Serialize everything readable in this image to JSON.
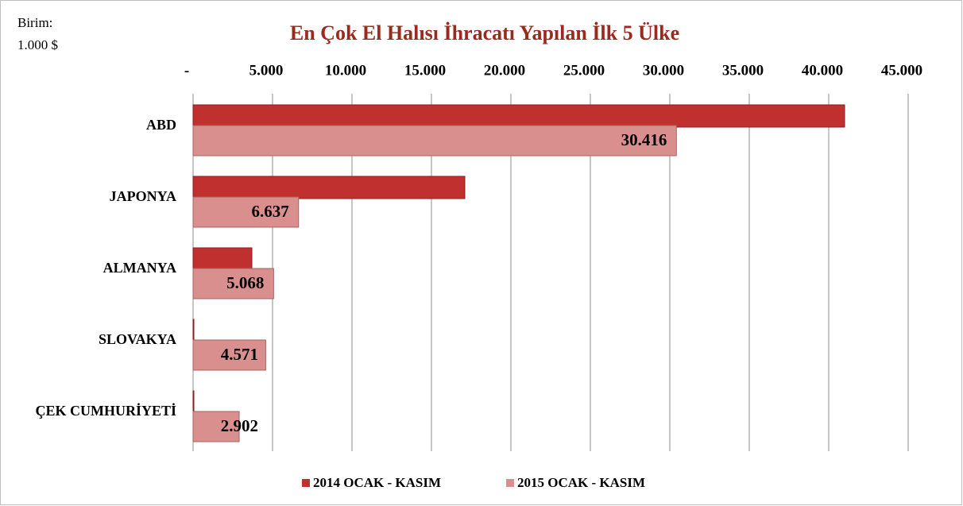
{
  "chart_data": {
    "type": "hbar",
    "title": "En Çok El Halısı İhracatı Yapılan İlk 5 Ülke",
    "unit": [
      "Birim:",
      "1.000 $"
    ],
    "categories": [
      "ABD",
      "JAPONYA",
      "ALMANYA",
      "SLOVAKYA",
      "ÇEK CUMHURİYETİ"
    ],
    "series": [
      {
        "name": "2014 OCAK - KASIM",
        "color": "#c0302e",
        "values": [
          41000,
          17100,
          3700,
          50,
          50
        ]
      },
      {
        "name": "2015 OCAK - KASIM",
        "color": "#d98f8e",
        "values": [
          30416,
          6637,
          5068,
          4571,
          2902
        ],
        "value_labels": [
          "30.416",
          "6.637",
          "5.068",
          "4.571",
          "2.902"
        ]
      }
    ],
    "xlim": [
      0,
      45000
    ],
    "xticks": [
      {
        "value": 0,
        "label": "-"
      },
      {
        "value": 5000,
        "label": "5.000"
      },
      {
        "value": 10000,
        "label": "10.000"
      },
      {
        "value": 15000,
        "label": "15.000"
      },
      {
        "value": 20000,
        "label": "20.000"
      },
      {
        "value": 25000,
        "label": "25.000"
      },
      {
        "value": 30000,
        "label": "30.000"
      },
      {
        "value": 35000,
        "label": "35.000"
      },
      {
        "value": 40000,
        "label": "40.000"
      },
      {
        "value": 45000,
        "label": "45.000"
      }
    ],
    "grid": true,
    "legend": "bottom"
  }
}
